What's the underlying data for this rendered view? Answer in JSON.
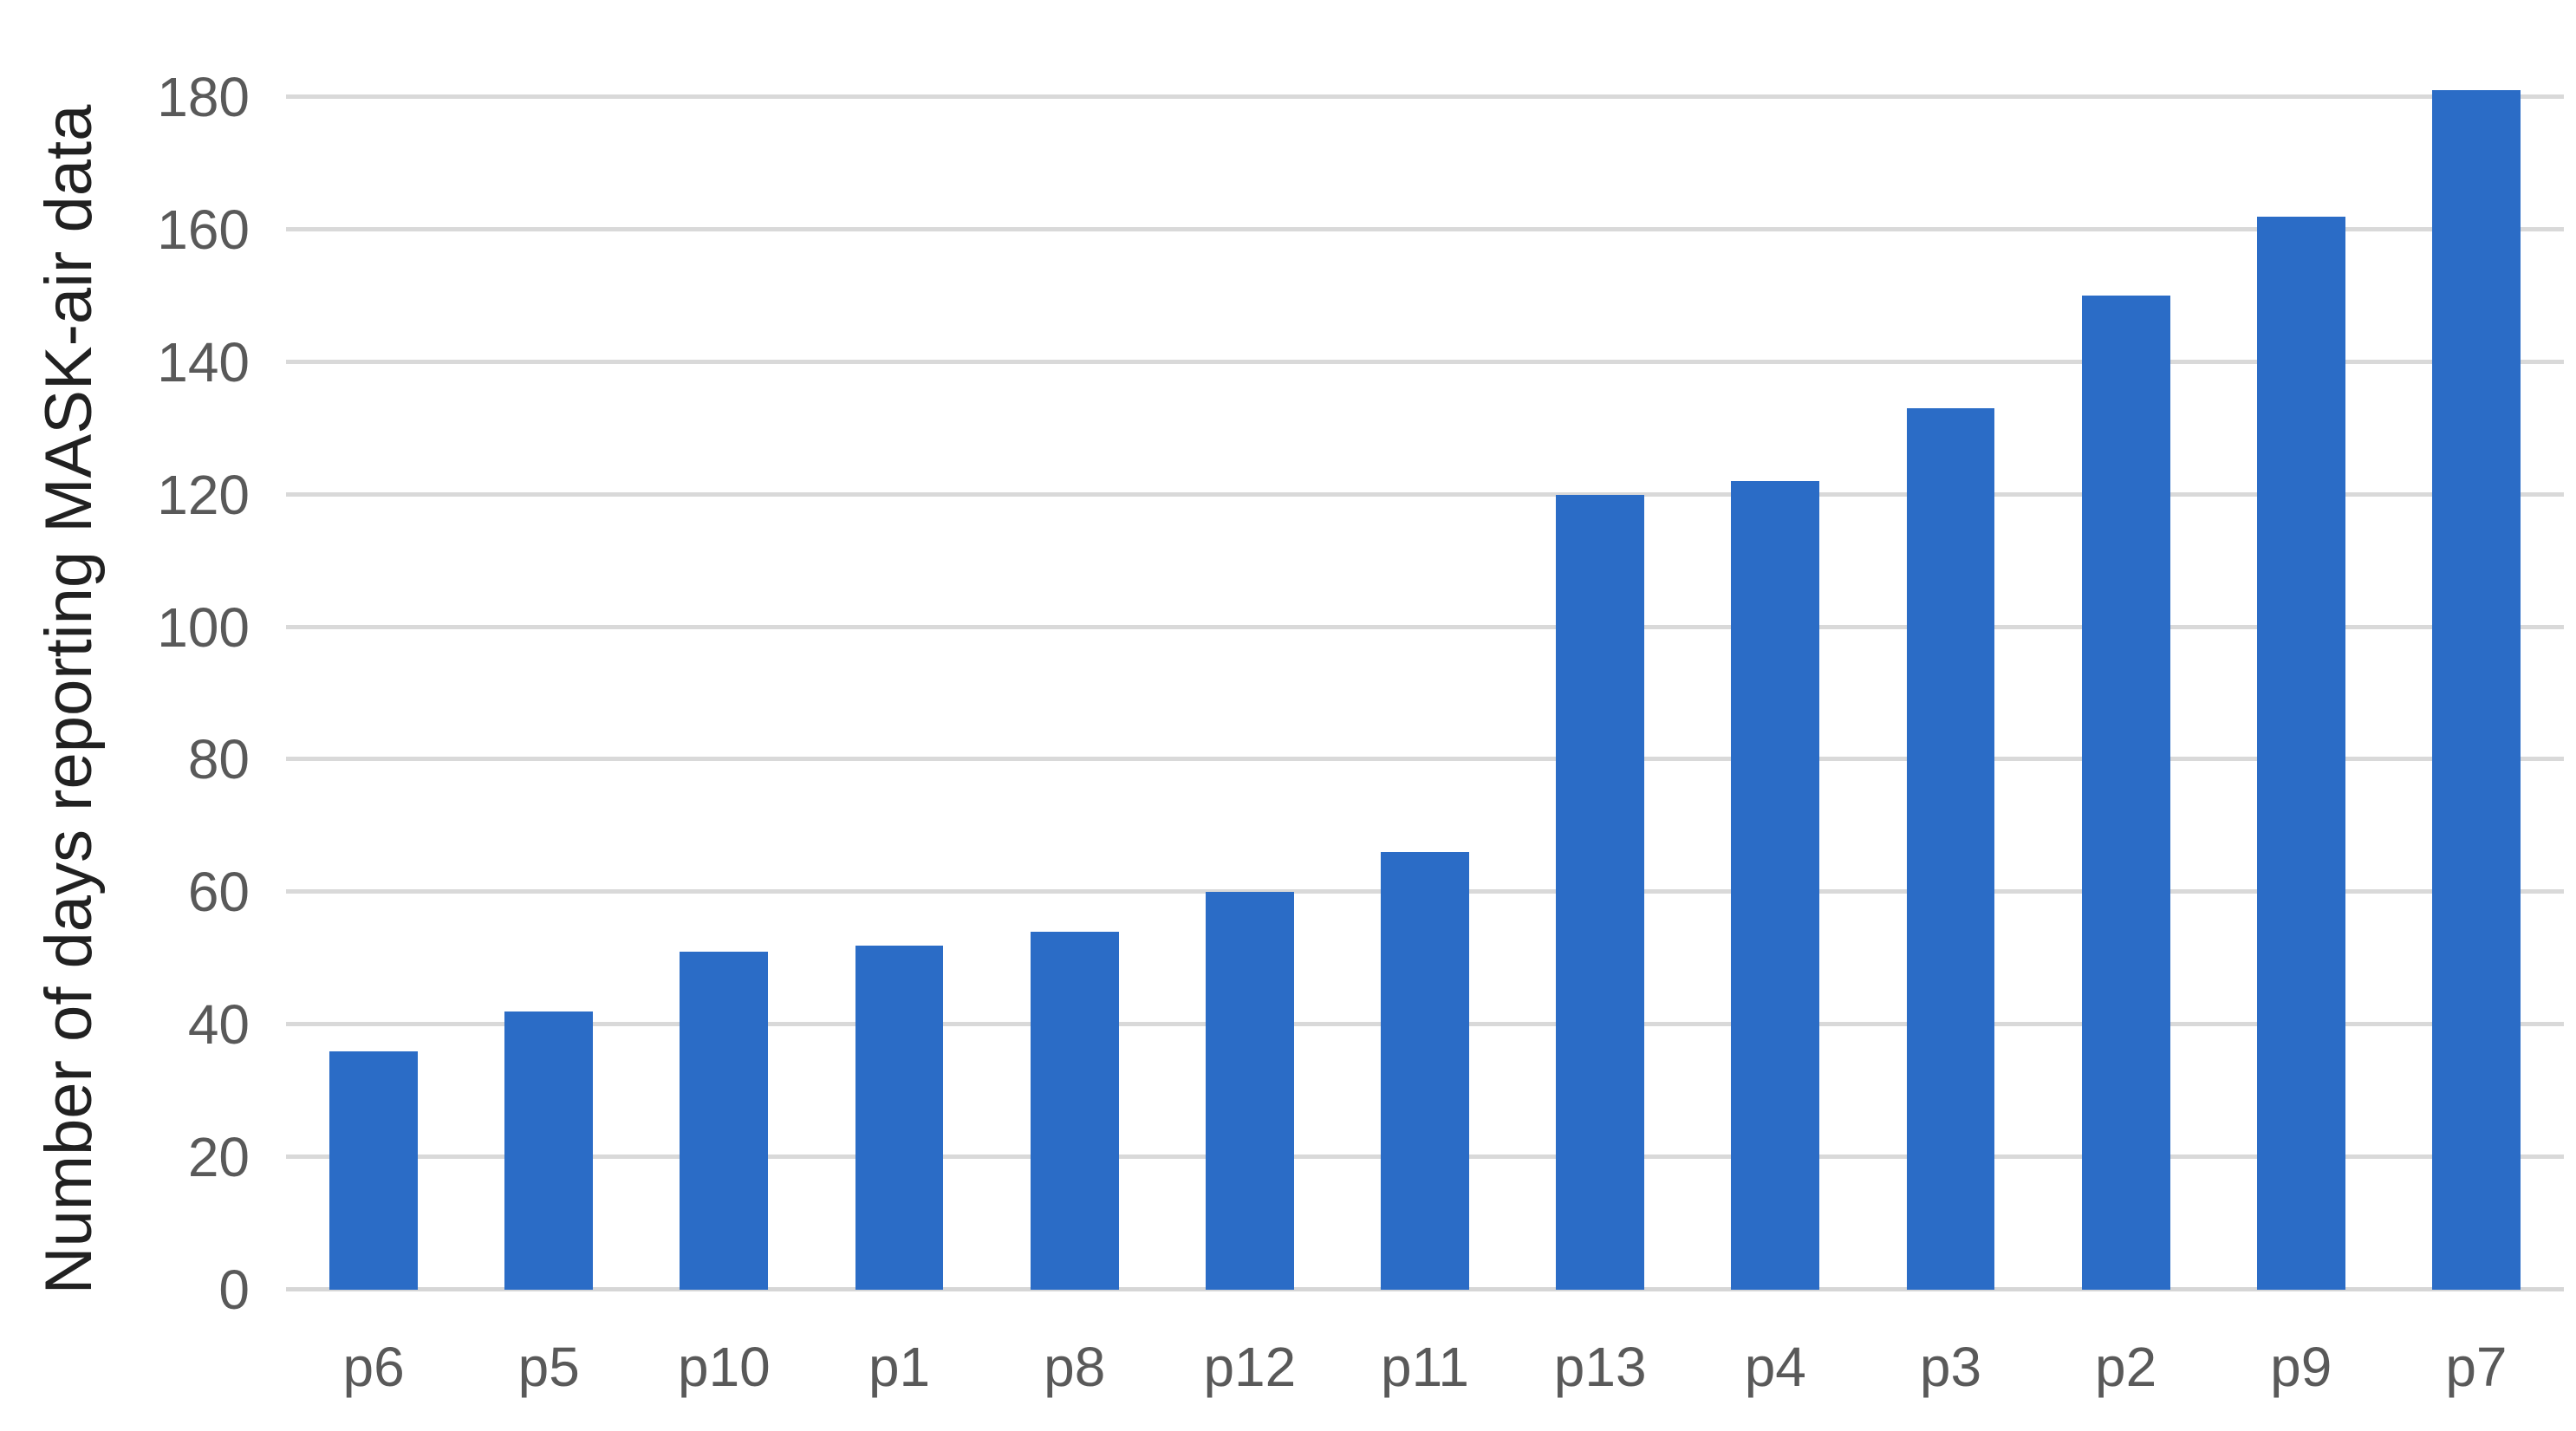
{
  "chart_data": {
    "type": "bar",
    "title": "",
    "xlabel": "",
    "ylabel": "Number of days reporting MASK-air data",
    "categories": [
      "p6",
      "p5",
      "p10",
      "p1",
      "p8",
      "p12",
      "p11",
      "p13",
      "p4",
      "p3",
      "p2",
      "p9",
      "p7"
    ],
    "values": [
      36,
      42,
      51,
      52,
      54,
      60,
      66,
      120,
      122,
      133,
      150,
      162,
      181
    ],
    "series": [
      {
        "name": "Number of days reporting MASK-air data",
        "values": [
          36,
          42,
          51,
          52,
          54,
          60,
          66,
          120,
          122,
          133,
          150,
          162,
          181
        ]
      }
    ],
    "ylim": [
      0,
      180
    ],
    "yticks": [
      0,
      20,
      40,
      60,
      80,
      100,
      120,
      140,
      160,
      180
    ],
    "grid": true,
    "legend": false,
    "bar_color": "#2B6CC6"
  },
  "colors": {
    "bar": "#2B6CC6",
    "gridline": "#D9D9D9",
    "axis_line": "#D6D6D6",
    "tick_label": "#595959",
    "category_label": "#595959",
    "axis_title": "#212121",
    "background": "#FFFFFF"
  }
}
